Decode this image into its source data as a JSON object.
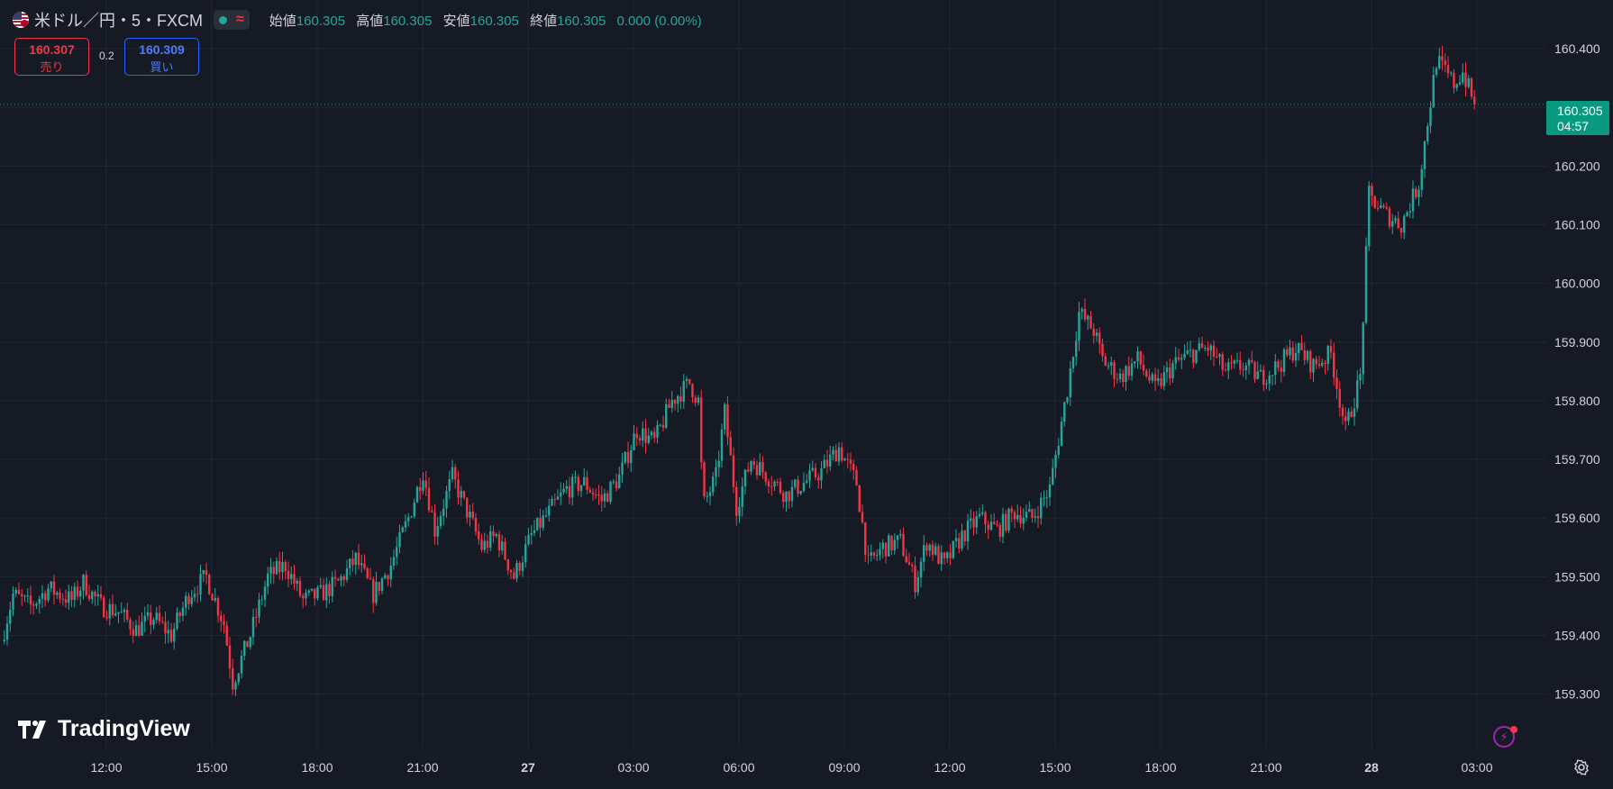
{
  "header": {
    "symbol": "米ドル／円・5・FXCM",
    "open_label": "始値",
    "open_value": "160.305",
    "high_label": "高値",
    "high_value": "160.305",
    "low_label": "安値",
    "low_value": "160.305",
    "close_label": "終値",
    "close_value": "160.305",
    "change": "0.000 (0.00%)",
    "status_icon": "wave-icon"
  },
  "trade": {
    "sell_price": "160.307",
    "sell_label": "売り",
    "buy_price": "160.309",
    "buy_label": "買い",
    "spread": "0.2"
  },
  "last_price": {
    "price": "160.305",
    "countdown": "04:57"
  },
  "brand": {
    "name": "TradingView"
  },
  "colors": {
    "up": "#26a69a",
    "down": "#f23645",
    "background": "#161a25",
    "grid": "#232734",
    "last_price": "#089981"
  },
  "chart_data": {
    "type": "candlestick",
    "timeframe_minutes": 5,
    "y_axis_ticks": [
      "160.400",
      "160.300",
      "160.200",
      "160.100",
      "160.000",
      "159.900",
      "159.800",
      "159.700",
      "159.600",
      "159.500",
      "159.400",
      "159.300"
    ],
    "ylim": [
      159.23,
      160.45
    ],
    "x_axis_ticks": [
      "12:00",
      "15:00",
      "18:00",
      "21:00",
      "27",
      "03:00",
      "06:00",
      "09:00",
      "12:00",
      "15:00",
      "18:00",
      "21:00",
      "28",
      "03:00"
    ],
    "x_tick_bold": [
      "27",
      "28"
    ],
    "x_tick_times": [
      "26T12:00",
      "26T15:00",
      "26T18:00",
      "26T21:00",
      "27T00:00",
      "27T03:00",
      "27T06:00",
      "27T09:00",
      "27T12:00",
      "27T15:00",
      "27T18:00",
      "27T21:00",
      "28T00:00",
      "28T03:00"
    ],
    "x_start": "26T09:40",
    "grid": true,
    "close_path": [
      [
        "26T09:40",
        159.39
      ],
      [
        "26T10:00",
        159.47
      ],
      [
        "26T10:30",
        159.45
      ],
      [
        "26T11:00",
        159.48
      ],
      [
        "26T11:40",
        159.46
      ],
      [
        "26T12:00",
        159.49
      ],
      [
        "26T12:30",
        159.45
      ],
      [
        "26T13:00",
        159.44
      ],
      [
        "26T13:30",
        159.41
      ],
      [
        "26T14:00",
        159.43
      ],
      [
        "26T14:30",
        159.4
      ],
      [
        "26T15:00",
        159.47
      ],
      [
        "26T15:30",
        159.5
      ],
      [
        "26T16:00",
        159.42
      ],
      [
        "26T16:15",
        159.32
      ],
      [
        "26T16:45",
        159.4
      ],
      [
        "26T17:15",
        159.5
      ],
      [
        "26T17:45",
        159.52
      ],
      [
        "26T18:15",
        159.46
      ],
      [
        "26T18:45",
        159.47
      ],
      [
        "26T19:15",
        159.49
      ],
      [
        "26T19:45",
        159.53
      ],
      [
        "26T20:15",
        159.47
      ],
      [
        "26T20:45",
        159.52
      ],
      [
        "26T21:15",
        159.6
      ],
      [
        "26T21:40",
        159.68
      ],
      [
        "26T22:00",
        159.58
      ],
      [
        "26T22:30",
        159.67
      ],
      [
        "26T23:00",
        159.6
      ],
      [
        "26T23:20",
        159.55
      ],
      [
        "26T23:45",
        159.57
      ],
      [
        "27T00:15",
        159.5
      ],
      [
        "27T00:45",
        159.57
      ],
      [
        "27T01:15",
        159.61
      ],
      [
        "27T01:45",
        159.65
      ],
      [
        "27T02:15",
        159.66
      ],
      [
        "27T02:45",
        159.63
      ],
      [
        "27T03:15",
        159.67
      ],
      [
        "27T03:45",
        159.75
      ],
      [
        "27T04:15",
        159.73
      ],
      [
        "27T04:45",
        159.8
      ],
      [
        "27T05:15",
        159.83
      ],
      [
        "27T05:30",
        159.8
      ],
      [
        "27T05:38",
        159.62
      ],
      [
        "27T06:00",
        159.67
      ],
      [
        "27T06:15",
        159.78
      ],
      [
        "27T06:35",
        159.62
      ],
      [
        "27T07:00",
        159.7
      ],
      [
        "27T07:30",
        159.67
      ],
      [
        "27T08:00",
        159.64
      ],
      [
        "27T08:30",
        159.66
      ],
      [
        "27T09:00",
        159.68
      ],
      [
        "27T09:30",
        159.72
      ],
      [
        "27T10:00",
        159.66
      ],
      [
        "27T10:20",
        159.52
      ],
      [
        "27T10:45",
        159.55
      ],
      [
        "27T11:15",
        159.56
      ],
      [
        "27T11:40",
        159.49
      ],
      [
        "27T12:00",
        159.56
      ],
      [
        "27T12:30",
        159.52
      ],
      [
        "27T13:00",
        159.57
      ],
      [
        "27T13:30",
        159.6
      ],
      [
        "27T14:00",
        159.58
      ],
      [
        "27T14:30",
        159.61
      ],
      [
        "27T15:00",
        159.6
      ],
      [
        "27T15:30",
        159.65
      ],
      [
        "27T16:00",
        159.82
      ],
      [
        "27T16:20",
        159.95
      ],
      [
        "27T16:45",
        159.92
      ],
      [
        "27T17:00",
        159.87
      ],
      [
        "27T17:30",
        159.84
      ],
      [
        "27T18:00",
        159.87
      ],
      [
        "27T18:30",
        159.82
      ],
      [
        "27T19:00",
        159.86
      ],
      [
        "27T19:30",
        159.88
      ],
      [
        "27T20:00",
        159.89
      ],
      [
        "27T20:30",
        159.85
      ],
      [
        "27T21:00",
        159.86
      ],
      [
        "27T21:30",
        159.84
      ],
      [
        "27T22:00",
        159.86
      ],
      [
        "27T22:30",
        159.89
      ],
      [
        "27T23:00",
        159.86
      ],
      [
        "27T23:30",
        159.88
      ],
      [
        "27T23:55",
        159.75
      ],
      [
        "28T00:20",
        159.84
      ],
      [
        "28T00:35",
        160.15
      ],
      [
        "28T01:00",
        160.12
      ],
      [
        "28T01:30",
        160.1
      ],
      [
        "28T02:00",
        160.17
      ],
      [
        "28T02:30",
        160.38
      ],
      [
        "28T03:00",
        160.34
      ],
      [
        "28T03:15",
        160.36
      ],
      [
        "28T03:35",
        160.305
      ]
    ],
    "last_price": 160.305
  }
}
